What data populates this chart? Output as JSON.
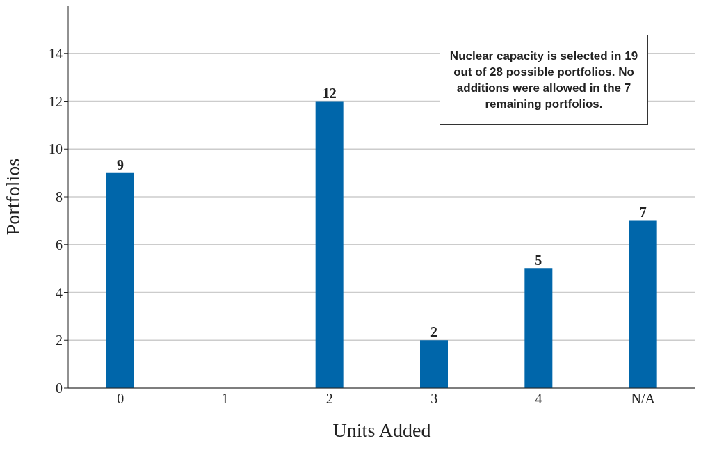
{
  "chart_data": {
    "type": "bar",
    "xlabel": "Units Added",
    "ylabel": "Portfolios",
    "categories": [
      "0",
      "1",
      "2",
      "3",
      "4",
      "N/A"
    ],
    "values": [
      9,
      0,
      12,
      2,
      5,
      7
    ],
    "value_labels": [
      "9",
      null,
      "12",
      "2",
      "5",
      "7"
    ],
    "color": "#0066aa",
    "ylim": [
      0,
      16
    ],
    "yticks": [
      0,
      2,
      4,
      6,
      8,
      10,
      12,
      14
    ],
    "grid": "y",
    "annotations": [
      "Nuclear capacity is selected in 19 out of 28 possible portfolios. No additions were allowed in the 7 remaining portfolios."
    ]
  }
}
